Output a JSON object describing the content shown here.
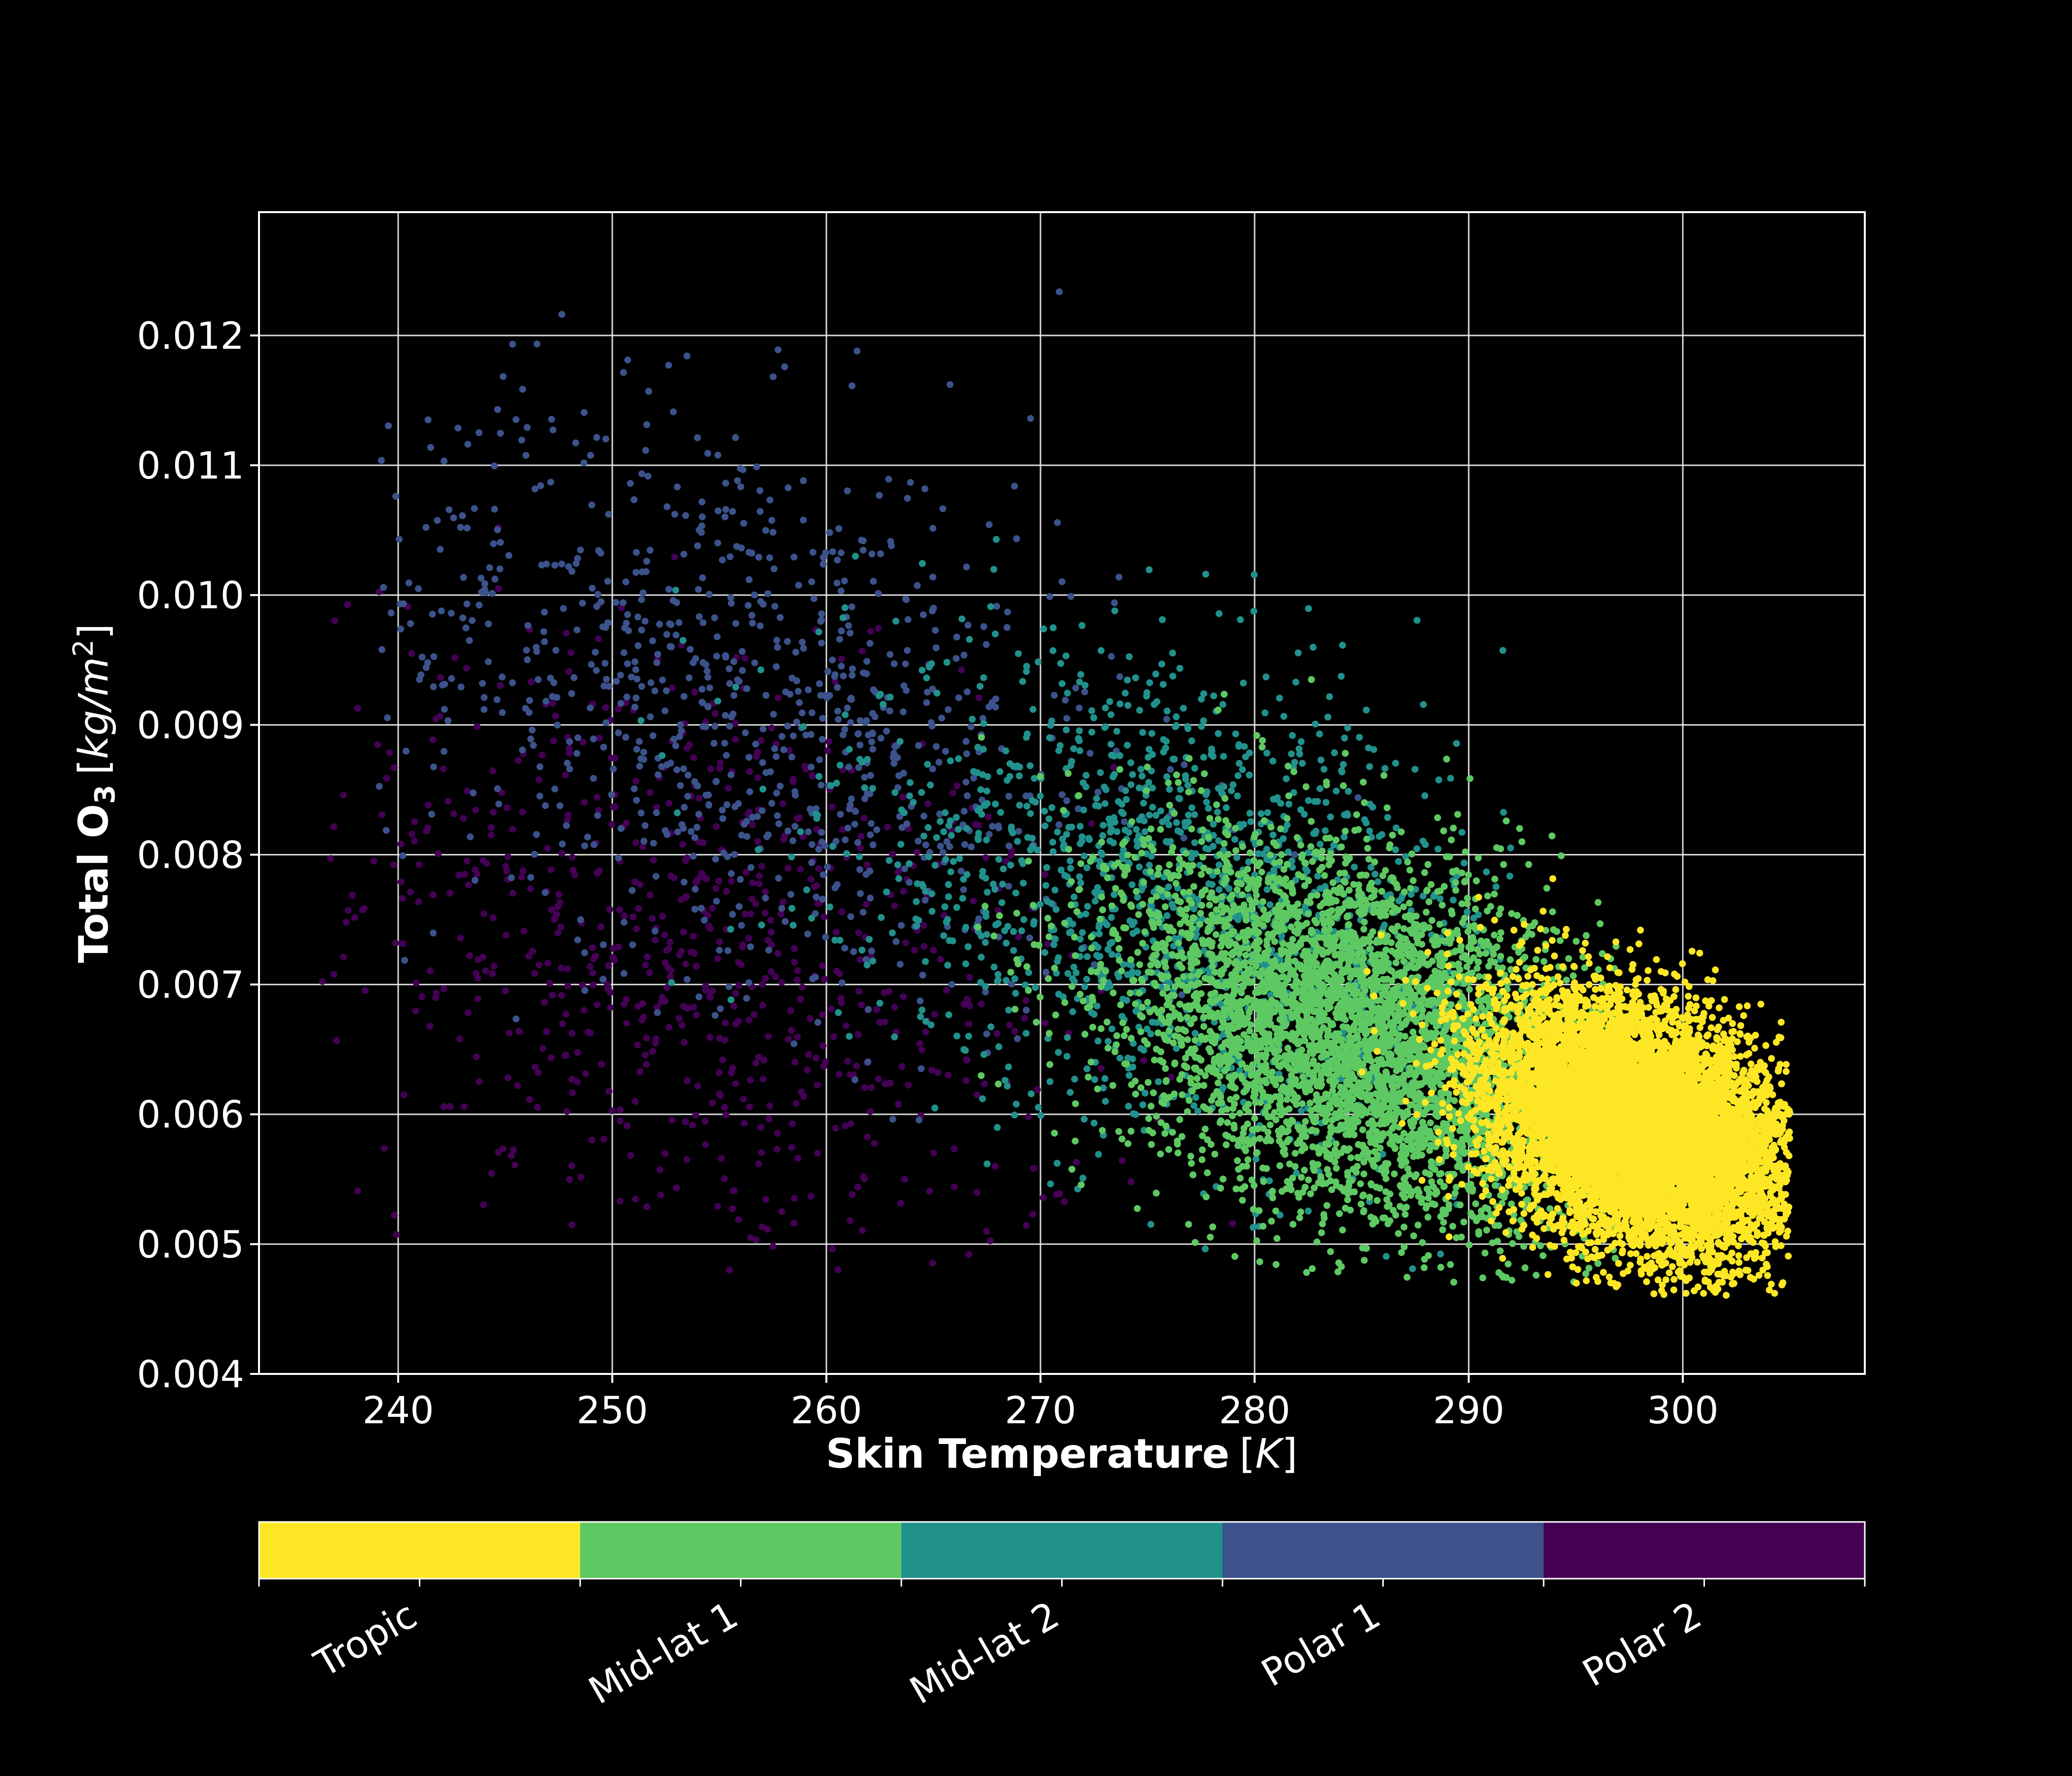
{
  "chart_data": {
    "type": "scatter",
    "title": "",
    "xlabel": {
      "bold": "Skin Temperature",
      "unit": "K"
    },
    "ylabel": {
      "bold": "Total O",
      "subscript": "3",
      "unit_base": "kg/m",
      "unit_exp": "2"
    },
    "xlim": [
      233.5,
      308.5
    ],
    "ylim": [
      0.004,
      0.01295
    ],
    "xticks": [
      240,
      250,
      260,
      270,
      280,
      290,
      300
    ],
    "xtick_labels": [
      "240",
      "250",
      "260",
      "270",
      "280",
      "290",
      "300"
    ],
    "yticks": [
      0.004,
      0.005,
      0.006,
      0.007,
      0.008,
      0.009,
      0.01,
      0.011,
      0.012
    ],
    "ytick_labels": [
      "0.004",
      "0.005",
      "0.006",
      "0.007",
      "0.008",
      "0.009",
      "0.010",
      "0.011",
      "0.012"
    ],
    "grid": true,
    "background": "#000000",
    "foreground": "#ffffff",
    "colorbar": {
      "orientation": "horizontal",
      "placement": "bottom",
      "categories": [
        "Tropic",
        "Mid-lat 1",
        "Mid-lat 2",
        "Polar 1",
        "Polar 2"
      ],
      "colors": [
        "#fde725",
        "#5ec962",
        "#21918c",
        "#3b528b",
        "#440154"
      ]
    },
    "series": [
      {
        "name": "Tropic",
        "color": "#fde725",
        "approx_points": 9000,
        "center": {
          "x": 298,
          "y": 0.0059
        },
        "spread": {
          "x": 3.5,
          "y": 0.00045
        },
        "x_range": [
          284,
          305
        ],
        "y_range": [
          0.0046,
          0.0083
        ]
      },
      {
        "name": "Mid-lat 1",
        "color": "#5ec962",
        "approx_points": 4500,
        "center": {
          "x": 285,
          "y": 0.0066
        },
        "spread": {
          "x": 5.5,
          "y": 0.0007
        },
        "x_range": [
          267,
          297
        ],
        "y_range": [
          0.0047,
          0.0095
        ]
      },
      {
        "name": "Mid-lat 2",
        "color": "#21918c",
        "approx_points": 1500,
        "center": {
          "x": 277,
          "y": 0.0076
        },
        "spread": {
          "x": 8,
          "y": 0.0009
        },
        "x_range": [
          250,
          292
        ],
        "y_range": [
          0.0048,
          0.0107
        ]
      },
      {
        "name": "Polar 1",
        "color": "#3b528b",
        "approx_points": 900,
        "center": {
          "x": 256,
          "y": 0.0092
        },
        "spread": {
          "x": 9,
          "y": 0.0011
        },
        "x_range": [
          239,
          285
        ],
        "y_range": [
          0.0055,
          0.0126
        ]
      },
      {
        "name": "Polar 2",
        "color": "#440154",
        "approx_points": 800,
        "center": {
          "x": 254,
          "y": 0.0072
        },
        "spread": {
          "x": 9,
          "y": 0.0012
        },
        "x_range": [
          236,
          280
        ],
        "y_range": [
          0.0048,
          0.0124
        ]
      }
    ]
  }
}
